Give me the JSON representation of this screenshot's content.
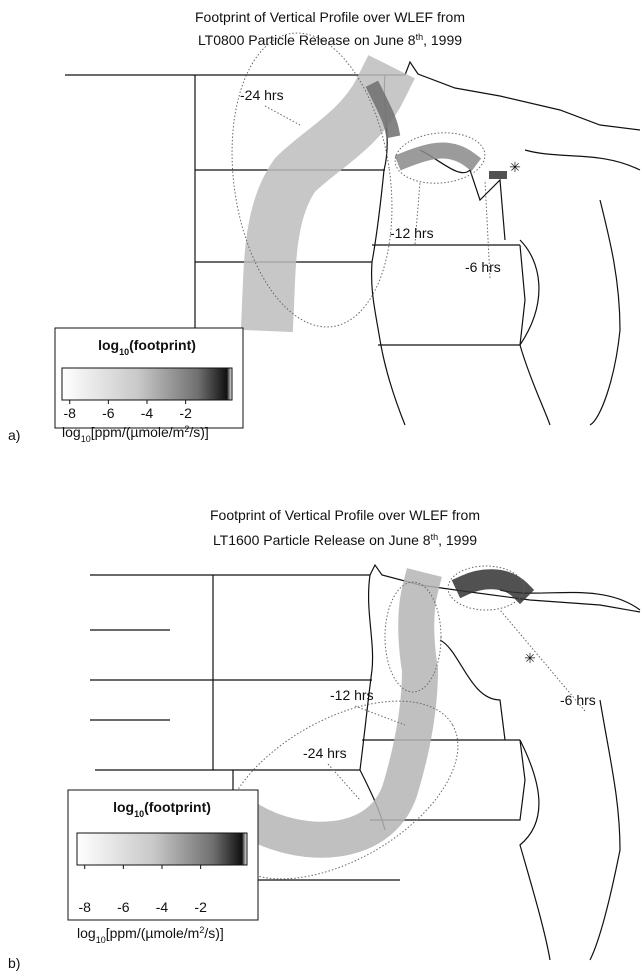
{
  "panels": [
    {
      "label": "a)",
      "title_line1": "Footprint of Vertical Profile over WLEF from",
      "title_line2_parts": [
        "LT0800 Particle Release on June 8",
        "th",
        ", 1999"
      ],
      "annotations": [
        "-24 hrs",
        "-12 hrs",
        "-6 hrs"
      ],
      "colorbar": {
        "title_parts": [
          "log",
          "10",
          "(footprint)"
        ],
        "ticks": [
          -8,
          -6,
          -4,
          -2
        ],
        "lim": [
          -8.4,
          0.4
        ]
      },
      "units_parts": [
        "log",
        "10",
        "[ppm/(µmole/m",
        "2",
        "/s)]"
      ]
    },
    {
      "label": "b)",
      "title_line1": "Footprint of Vertical Profile over WLEF from",
      "title_line2_parts": [
        "LT1600 Particle Release on June 8",
        "th",
        ", 1999"
      ],
      "annotations": [
        "-12 hrs",
        "-24 hrs",
        "-6 hrs"
      ],
      "colorbar": {
        "title_parts": [
          "log",
          "10",
          "(footprint)"
        ],
        "ticks": [
          -8,
          -6,
          -4,
          -2
        ],
        "lim": [
          -8.4,
          0.4
        ]
      },
      "units_parts": [
        "log",
        "10",
        "[ppm/(µmole/m",
        "2",
        "/s)]"
      ]
    }
  ]
}
